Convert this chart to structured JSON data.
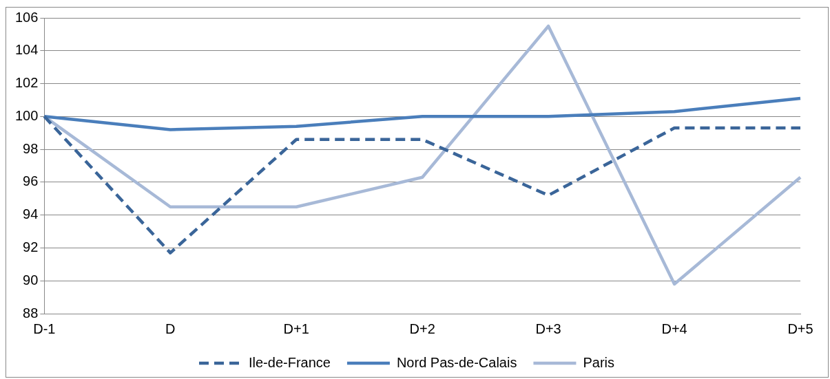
{
  "chart_data": {
    "type": "line",
    "categories": [
      "D-1",
      "D",
      "D+1",
      "D+2",
      "D+3",
      "D+4",
      "D+5"
    ],
    "series": [
      {
        "name": "Ile-de-France",
        "color": "#3a6599",
        "line_style": "dashed",
        "values": [
          100,
          91.7,
          98.6,
          98.6,
          95.2,
          99.3,
          99.3
        ]
      },
      {
        "name": "Nord Pas-de-Calais",
        "color": "#4a7ebb",
        "values": [
          100,
          99.2,
          99.4,
          100,
          100,
          100.3,
          101.1
        ]
      },
      {
        "name": "Paris",
        "color": "#a7b9d7",
        "values": [
          100,
          94.5,
          94.5,
          96.3,
          105.5,
          89.8,
          96.3
        ]
      }
    ],
    "ylim": [
      88,
      106
    ],
    "yticks": [
      88,
      90,
      92,
      94,
      96,
      98,
      100,
      102,
      104,
      106
    ],
    "grid": "y",
    "legend": "bottom",
    "marker": "none"
  }
}
